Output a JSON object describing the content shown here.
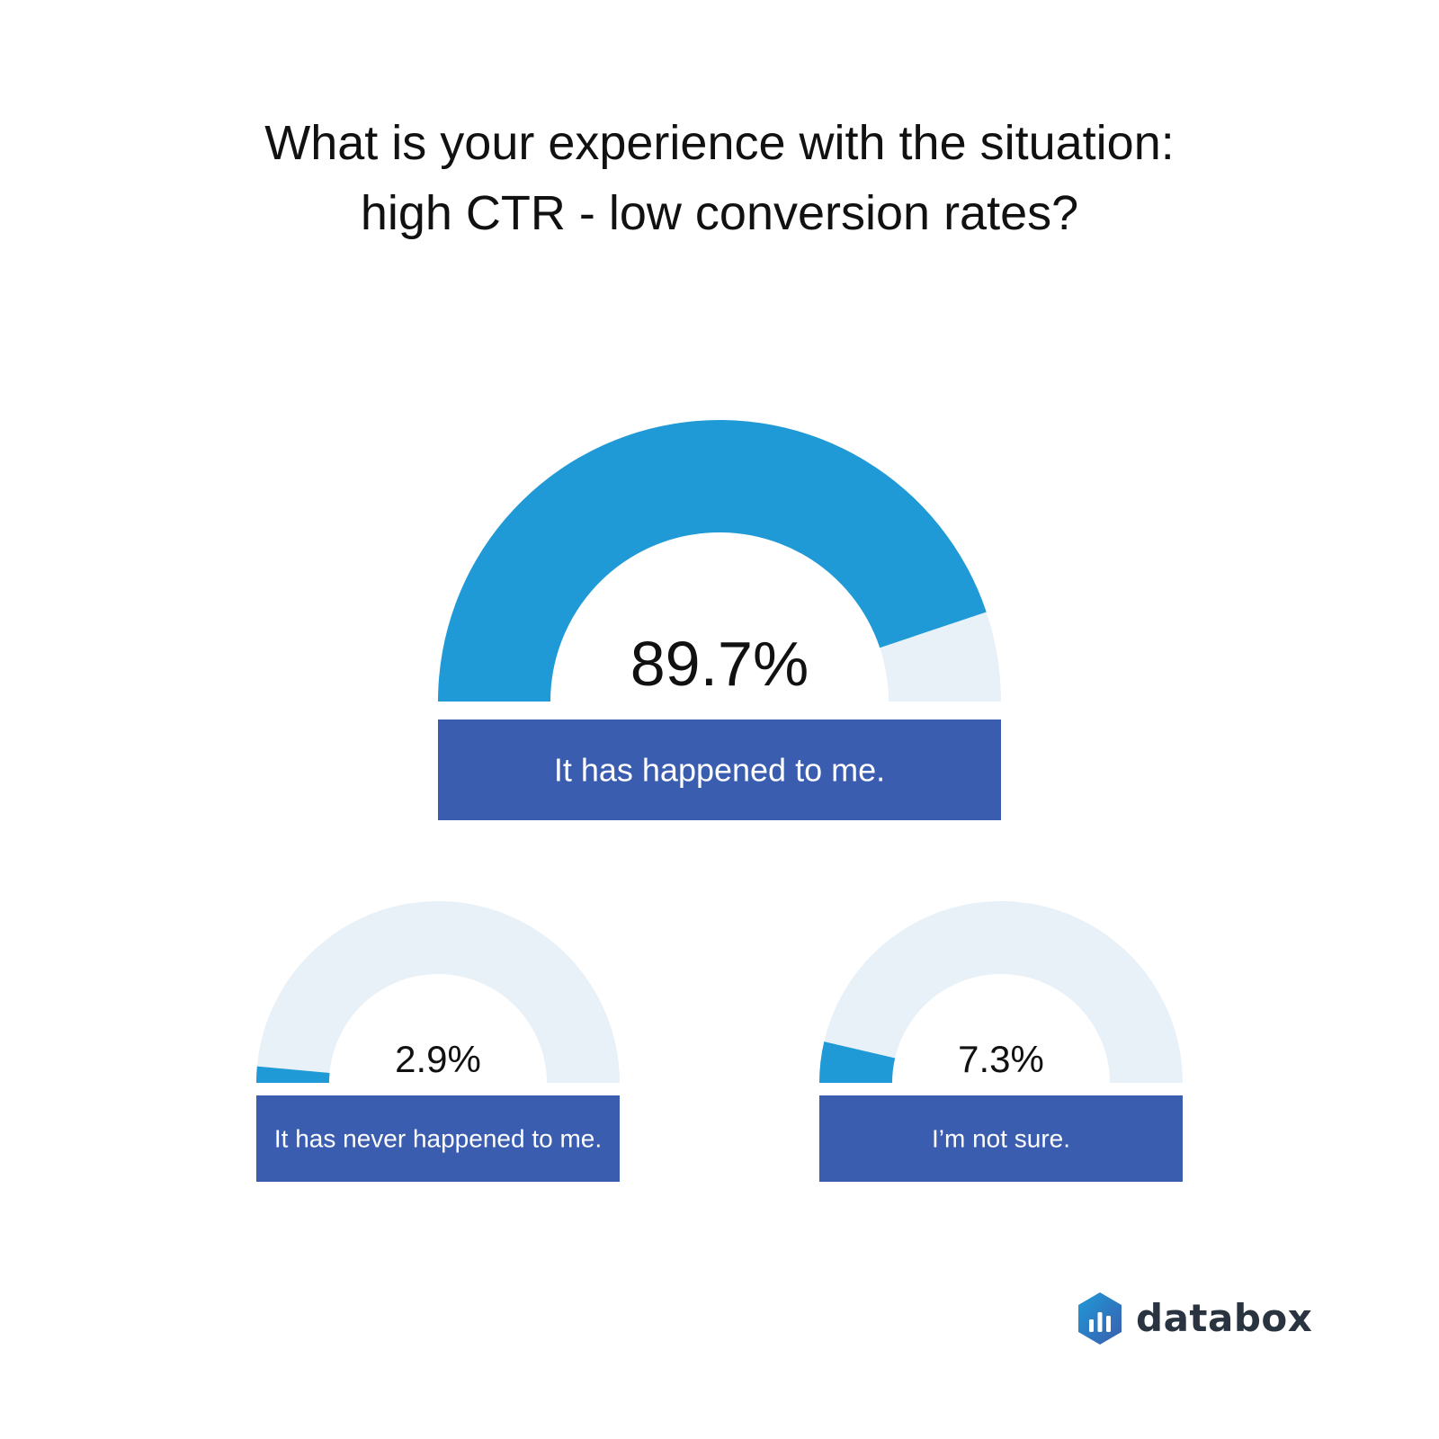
{
  "title": {
    "line1": "What is your experience with the situation:",
    "line2": "high CTR - low conversion rates?"
  },
  "chart_data": {
    "type": "gauge",
    "unit": "%",
    "max": 100,
    "items": [
      {
        "label": "It has happened to me.",
        "value": 89.7,
        "display": "89.7%"
      },
      {
        "label": "It has never happened to me.",
        "value": 2.9,
        "display": "2.9%"
      },
      {
        "label": "I’m not sure.",
        "value": 7.3,
        "display": "7.3%"
      }
    ]
  },
  "colors": {
    "fill": "#1f9ad6",
    "track": "#e8f1f7",
    "label_box": "#3b5daf",
    "label_text": "#ffffff",
    "value_text": "#111111"
  },
  "logo": {
    "text": "databox",
    "icon": "databox-logo-icon"
  }
}
